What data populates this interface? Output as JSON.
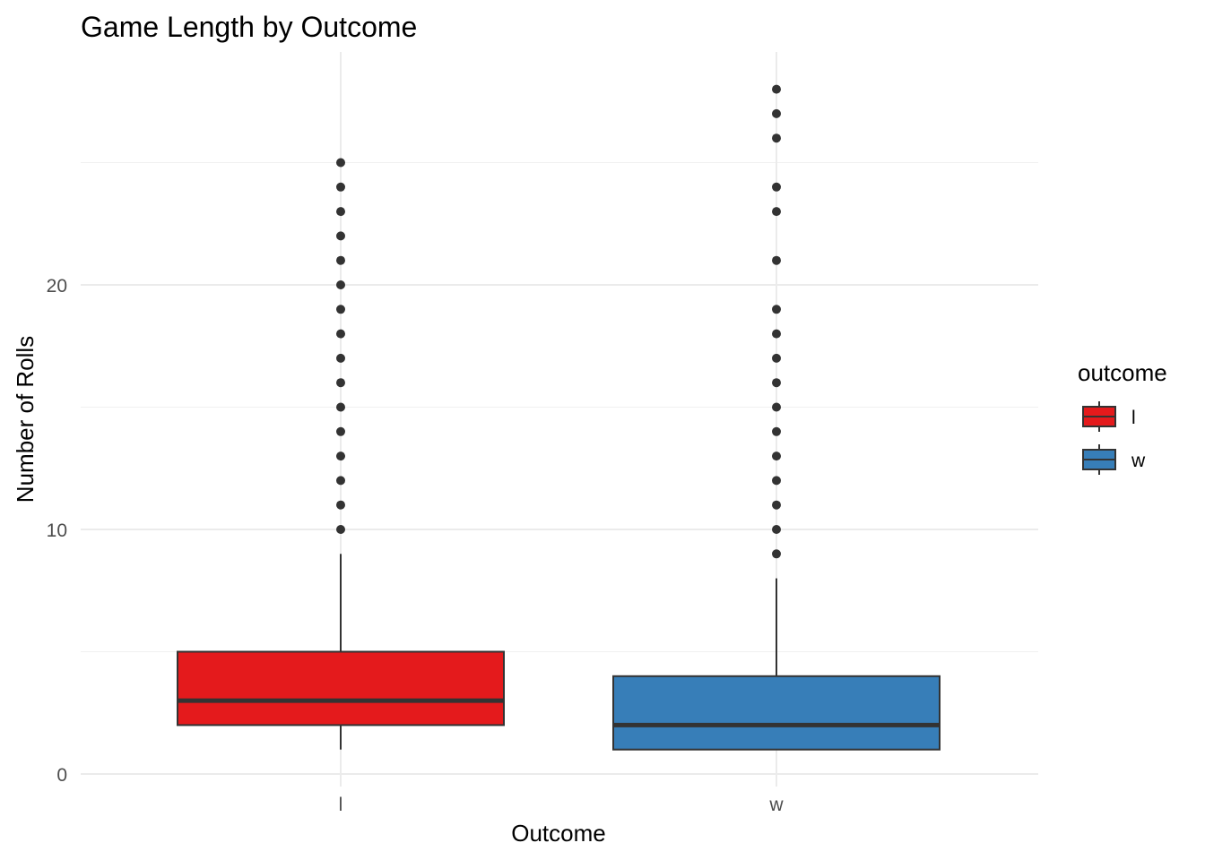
{
  "chart_data": {
    "type": "boxplot",
    "title": "Game Length by Outcome",
    "xlabel": "Outcome",
    "ylabel": "Number of Rolls",
    "ylim": [
      0,
      28
    ],
    "yticks": [
      0,
      10,
      20
    ],
    "grid": true,
    "legend": {
      "title": "outcome",
      "position": "right",
      "entries": [
        {
          "label": "l",
          "color": "#E41A1C"
        },
        {
          "label": "w",
          "color": "#377EB8"
        }
      ]
    },
    "categories": [
      "l",
      "w"
    ],
    "boxes": [
      {
        "category": "l",
        "whisker_low": 1,
        "q1": 2,
        "median": 3,
        "q3": 5,
        "whisker_high": 9,
        "outliers": [
          10,
          11,
          12,
          13,
          14,
          15,
          16,
          17,
          18,
          19,
          20,
          21,
          22,
          23,
          24,
          25
        ],
        "color": "#E41A1C"
      },
      {
        "category": "w",
        "whisker_low": 1,
        "q1": 1,
        "median": 2,
        "q3": 4,
        "whisker_high": 8,
        "outliers": [
          9,
          10,
          11,
          12,
          13,
          14,
          15,
          16,
          17,
          18,
          19,
          21,
          23,
          24,
          26,
          27,
          28
        ],
        "color": "#377EB8"
      }
    ]
  }
}
